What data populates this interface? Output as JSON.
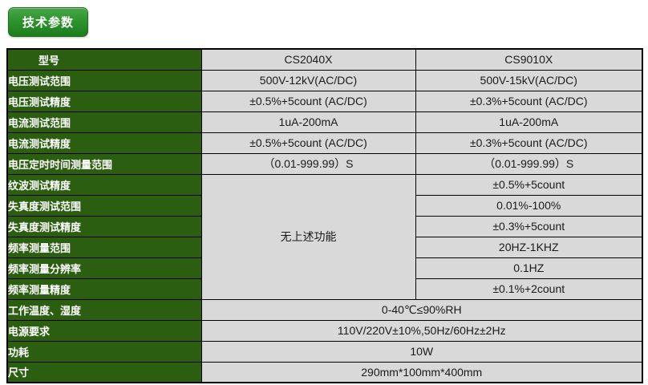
{
  "badge": {
    "label": "技术参数"
  },
  "colors": {
    "header_green": "#2b5e10",
    "badge_green_top": "#46a746",
    "badge_green_bottom": "#1d7c1d",
    "cell_gray": "#d9d9d9",
    "border_black": "#000000"
  },
  "table": {
    "model_label": "型号",
    "models": [
      "CS2040X",
      "CS9010X"
    ],
    "dual_rows": [
      {
        "label": "电压测试范围",
        "cs2040x": "500V-12kV(AC/DC)",
        "cs9010x": "500V-15kV(AC/DC)"
      },
      {
        "label": "电压测试精度",
        "cs2040x": "±0.5%+5count (AC/DC)",
        "cs9010x": "±0.3%+5count (AC/DC)"
      },
      {
        "label": "电流测试范围",
        "cs2040x": "1uA-200mA",
        "cs9010x": "1uA-200mA"
      },
      {
        "label": "电流测试精度",
        "cs2040x": "±0.5%+5count (AC/DC)",
        "cs9010x": "±0.3%+5count (AC/DC)"
      },
      {
        "label": "电压定时时间测量范围",
        "cs2040x": "（0.01-999.99）S",
        "cs9010x": "（0.01-999.99）S"
      }
    ],
    "merged_section": {
      "cs2040x_merged_value": "无上述功能",
      "rows": [
        {
          "label": "纹波测试精度",
          "cs9010x": "±0.5%+5count"
        },
        {
          "label": "失真度测试范围",
          "cs9010x": "0.01%-100%"
        },
        {
          "label": "失真度测试精度",
          "cs9010x": "±0.3%+5count"
        },
        {
          "label": "频率测量范围",
          "cs9010x": "20HZ-1KHZ"
        },
        {
          "label": "频率测量分辨率",
          "cs9010x": "0.1HZ"
        },
        {
          "label": "频率测量精度",
          "cs9010x": "±0.1%+2count"
        }
      ]
    },
    "common_rows": [
      {
        "label": "工作温度、湿度",
        "value": "0-40℃≤90%RH"
      },
      {
        "label": "电源要求",
        "value": "110V/220V±10%,50Hz/60Hz±2Hz"
      },
      {
        "label": "功耗",
        "value": "10W"
      },
      {
        "label": "尺寸",
        "value": "290mm*100mm*400mm"
      }
    ]
  }
}
